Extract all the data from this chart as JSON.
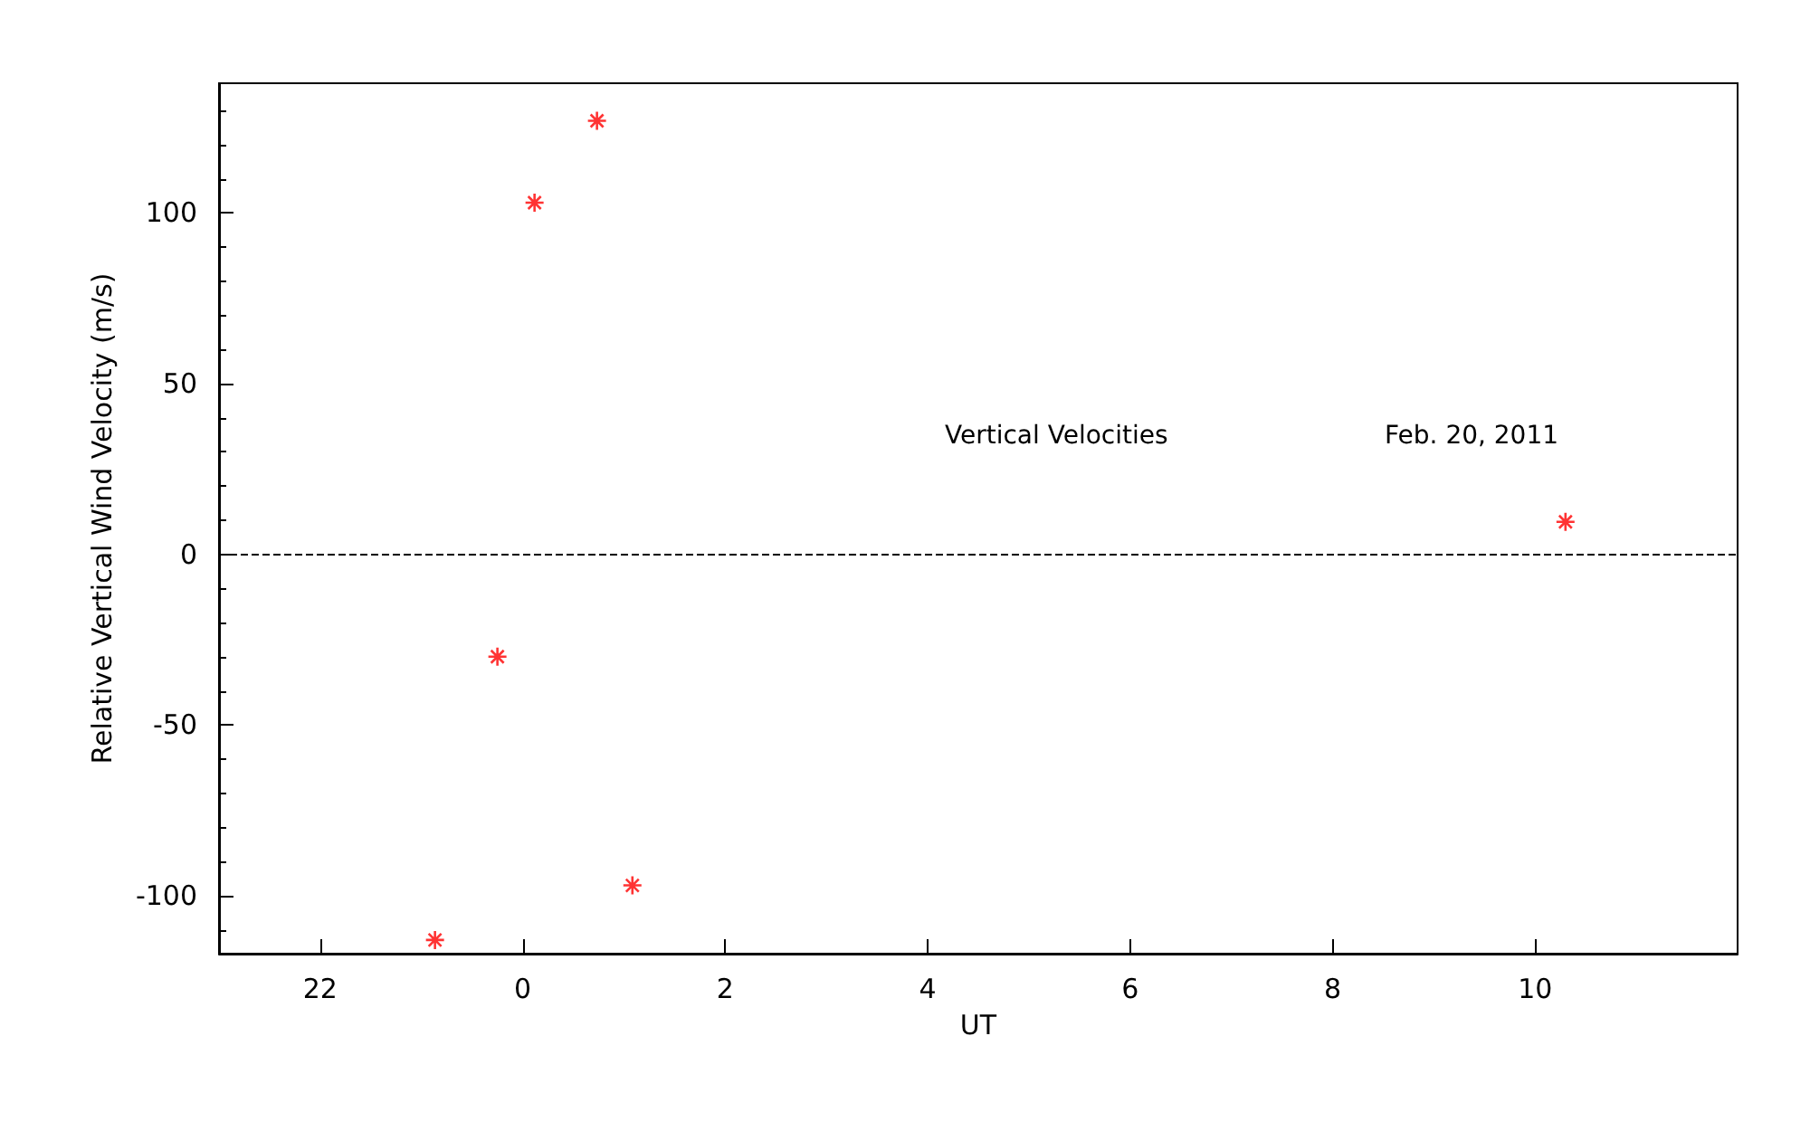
{
  "chart_data": {
    "type": "scatter",
    "xlabel": "UT",
    "ylabel": "Relative Vertical Wind Velocity (m/s)",
    "annotations": [
      "Vertical Velocities",
      "Feb. 20, 2011"
    ],
    "x": [
      "2011-02-19T23:08",
      "2011-02-19T23:45",
      "2011-02-20T00:07",
      "2011-02-20T00:44",
      "2011-02-20T01:05",
      "2011-02-20T10:18"
    ],
    "series": [
      {
        "color": "#ff0000",
        "values": [
          -113,
          -30,
          103,
          127,
          -97,
          9.5
        ]
      }
    ],
    "xlim": [
      "2011-02-19T21:00",
      "2011-02-20T12:00"
    ],
    "xticks": [
      {
        "value": "2011-02-19T22:00",
        "label": "22"
      },
      {
        "value": "2011-02-20T00:00",
        "label": "0"
      },
      {
        "value": "2011-02-20T02:00",
        "label": "2"
      },
      {
        "value": "2011-02-20T04:00",
        "label": "4"
      },
      {
        "value": "2011-02-20T06:00",
        "label": "6"
      },
      {
        "value": "2011-02-20T08:00",
        "label": "8"
      },
      {
        "value": "2011-02-20T10:00",
        "label": "10"
      }
    ],
    "ylim": [
      -117,
      138
    ],
    "yticks": [
      -100,
      -50,
      0,
      50,
      100
    ],
    "ref_lines": [
      {
        "axis": "y",
        "value": 0,
        "color": "#000000",
        "line_style": "dashed"
      }
    ],
    "marker": "cross",
    "grid": false
  }
}
